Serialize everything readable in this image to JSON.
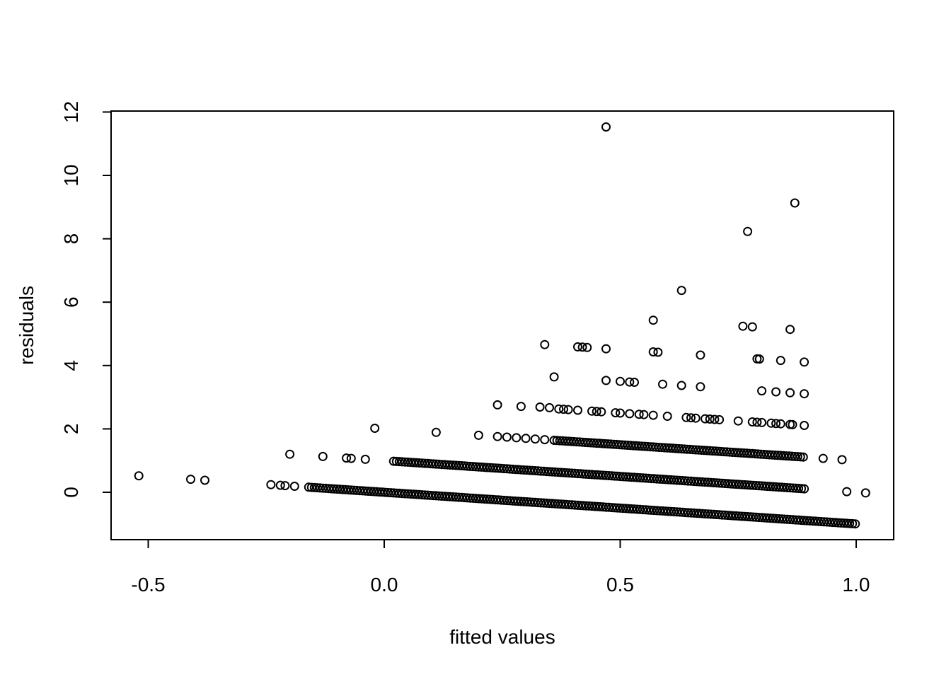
{
  "chart_data": {
    "type": "scatter",
    "title": "",
    "xlabel": "fitted values",
    "ylabel": "residuals",
    "xlim": [
      -0.58,
      1.08
    ],
    "ylim": [
      -1.5,
      12.0
    ],
    "x_ticks": [
      -0.5,
      0.0,
      0.5,
      1.0
    ],
    "x_tick_labels": [
      "-0.5",
      "0.0",
      "0.5",
      "1.0"
    ],
    "y_ticks": [
      0,
      2,
      4,
      6,
      8,
      10,
      12
    ],
    "y_tick_labels": [
      "0",
      "2",
      "4",
      "6",
      "8",
      "10",
      "12"
    ],
    "grid": false,
    "legend": "none",
    "marker": "open-circle",
    "band_note": "Dense points follow residual = k - fitted for k = 0, 1, 2",
    "bands": [
      {
        "offset": 0,
        "x_from": -0.16,
        "x_to": 1.0
      },
      {
        "offset": 1,
        "x_from": 0.02,
        "x_to": 0.89
      },
      {
        "offset": 2,
        "x_from": 0.36,
        "x_to": 0.89
      }
    ],
    "points": [
      {
        "x": -0.52,
        "y": 0.52
      },
      {
        "x": -0.41,
        "y": 0.41
      },
      {
        "x": -0.38,
        "y": 0.38
      },
      {
        "x": -0.24,
        "y": 0.24
      },
      {
        "x": -0.22,
        "y": 0.22
      },
      {
        "x": -0.21,
        "y": 0.21
      },
      {
        "x": -0.19,
        "y": 0.19
      },
      {
        "x": -0.2,
        "y": 1.2
      },
      {
        "x": -0.13,
        "y": 1.13
      },
      {
        "x": -0.08,
        "y": 1.08
      },
      {
        "x": -0.07,
        "y": 1.07
      },
      {
        "x": -0.04,
        "y": 1.04
      },
      {
        "x": -0.02,
        "y": 2.02
      },
      {
        "x": 0.11,
        "y": 1.89
      },
      {
        "x": 0.2,
        "y": 1.8
      },
      {
        "x": 0.24,
        "y": 1.76
      },
      {
        "x": 0.26,
        "y": 1.74
      },
      {
        "x": 0.28,
        "y": 1.72
      },
      {
        "x": 0.3,
        "y": 1.7
      },
      {
        "x": 0.32,
        "y": 1.68
      },
      {
        "x": 0.34,
        "y": 1.66
      },
      {
        "x": 0.24,
        "y": 2.76
      },
      {
        "x": 0.29,
        "y": 2.71
      },
      {
        "x": 0.33,
        "y": 2.69
      },
      {
        "x": 0.35,
        "y": 2.67
      },
      {
        "x": 0.98,
        "y": 0.02
      },
      {
        "x": 1.02,
        "y": -0.02
      },
      {
        "x": 0.93,
        "y": 1.07
      },
      {
        "x": 0.97,
        "y": 1.03
      },
      {
        "x": 0.47,
        "y": 11.53
      },
      {
        "x": 0.87,
        "y": 9.13
      },
      {
        "x": 0.77,
        "y": 8.23
      },
      {
        "x": 0.63,
        "y": 6.37
      },
      {
        "x": 0.57,
        "y": 5.43
      },
      {
        "x": 0.76,
        "y": 5.24
      },
      {
        "x": 0.78,
        "y": 5.22
      },
      {
        "x": 0.86,
        "y": 5.14
      },
      {
        "x": 0.34,
        "y": 4.66
      },
      {
        "x": 0.41,
        "y": 4.59
      },
      {
        "x": 0.42,
        "y": 4.58
      },
      {
        "x": 0.43,
        "y": 4.57
      },
      {
        "x": 0.47,
        "y": 4.53
      },
      {
        "x": 0.57,
        "y": 4.43
      },
      {
        "x": 0.58,
        "y": 4.42
      },
      {
        "x": 0.67,
        "y": 4.33
      },
      {
        "x": 0.79,
        "y": 4.21
      },
      {
        "x": 0.795,
        "y": 4.205
      },
      {
        "x": 0.84,
        "y": 4.16
      },
      {
        "x": 0.89,
        "y": 4.11
      },
      {
        "x": 0.36,
        "y": 3.64
      },
      {
        "x": 0.47,
        "y": 3.53
      },
      {
        "x": 0.5,
        "y": 3.5
      },
      {
        "x": 0.52,
        "y": 3.48
      },
      {
        "x": 0.53,
        "y": 3.47
      },
      {
        "x": 0.59,
        "y": 3.41
      },
      {
        "x": 0.63,
        "y": 3.37
      },
      {
        "x": 0.67,
        "y": 3.33
      },
      {
        "x": 0.8,
        "y": 3.2
      },
      {
        "x": 0.83,
        "y": 3.17
      },
      {
        "x": 0.86,
        "y": 3.14
      },
      {
        "x": 0.89,
        "y": 3.11
      },
      {
        "x": 0.37,
        "y": 2.63
      },
      {
        "x": 0.38,
        "y": 2.62
      },
      {
        "x": 0.39,
        "y": 2.61
      },
      {
        "x": 0.41,
        "y": 2.59
      },
      {
        "x": 0.44,
        "y": 2.56
      },
      {
        "x": 0.45,
        "y": 2.55
      },
      {
        "x": 0.46,
        "y": 2.54
      },
      {
        "x": 0.49,
        "y": 2.51
      },
      {
        "x": 0.5,
        "y": 2.5
      },
      {
        "x": 0.52,
        "y": 2.48
      },
      {
        "x": 0.54,
        "y": 2.46
      },
      {
        "x": 0.55,
        "y": 2.45
      },
      {
        "x": 0.57,
        "y": 2.43
      },
      {
        "x": 0.6,
        "y": 2.4
      },
      {
        "x": 0.64,
        "y": 2.36
      },
      {
        "x": 0.65,
        "y": 2.35
      },
      {
        "x": 0.66,
        "y": 2.34
      },
      {
        "x": 0.68,
        "y": 2.32
      },
      {
        "x": 0.69,
        "y": 2.31
      },
      {
        "x": 0.7,
        "y": 2.3
      },
      {
        "x": 0.71,
        "y": 2.29
      },
      {
        "x": 0.75,
        "y": 2.25
      },
      {
        "x": 0.78,
        "y": 2.22
      },
      {
        "x": 0.79,
        "y": 2.21
      },
      {
        "x": 0.8,
        "y": 2.2
      },
      {
        "x": 0.82,
        "y": 2.18
      },
      {
        "x": 0.83,
        "y": 2.17
      },
      {
        "x": 0.84,
        "y": 2.16
      },
      {
        "x": 0.86,
        "y": 2.14
      },
      {
        "x": 0.865,
        "y": 2.135
      },
      {
        "x": 0.89,
        "y": 2.11
      }
    ]
  }
}
